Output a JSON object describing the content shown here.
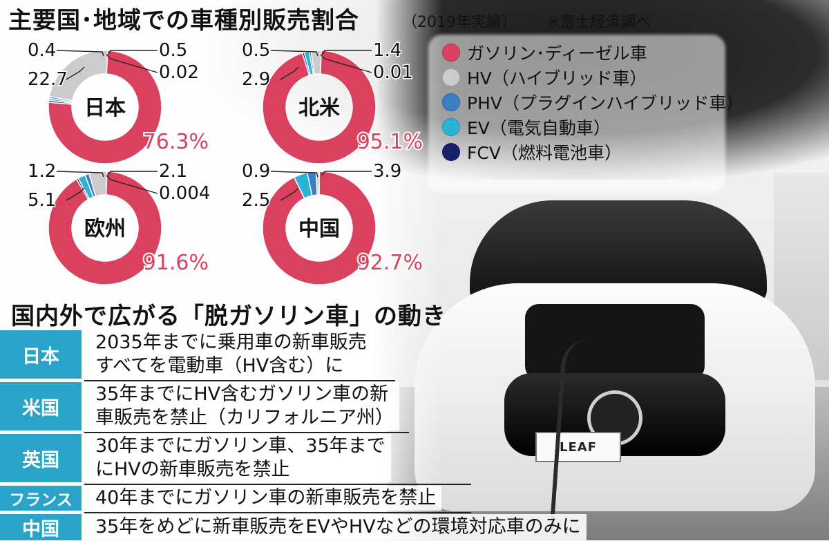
{
  "title": "主要国･地域での車種別販売割合",
  "subtitle": "（2019年実績）",
  "source_note": "※富士経済調べ",
  "colors": {
    "gasoline": "#d9415f",
    "hv": "#cccccc",
    "phv": "#3b7ec6",
    "ev": "#2ab3d6",
    "fcv": "#1a1f6a",
    "accent": "#2aa3c8"
  },
  "legend": [
    {
      "label": "ガソリン･ディーゼル車",
      "color_key": "gasoline"
    },
    {
      "label": "HV（ハイブリッド車）",
      "color_key": "hv"
    },
    {
      "label": "PHV（プラグインハイブリッド車）",
      "color_key": "phv"
    },
    {
      "label": "EV（電気自動車）",
      "color_key": "ev"
    },
    {
      "label": "FCV（燃料電池車）",
      "color_key": "fcv"
    }
  ],
  "chart_data": [
    {
      "type": "pie",
      "region": "日本",
      "categories": [
        "ガソリン･ディーゼル車",
        "HV",
        "PHV",
        "EV",
        "FCV"
      ],
      "values": [
        76.3,
        22.7,
        0.5,
        0.4,
        0.02
      ],
      "main_label": "76.3%",
      "labels": {
        "hv": "22.7",
        "phv": "0.5",
        "ev": "0.4",
        "fcv": "0.02"
      }
    },
    {
      "type": "pie",
      "region": "北米",
      "categories": [
        "ガソリン･ディーゼル車",
        "HV",
        "PHV",
        "EV",
        "FCV"
      ],
      "values": [
        95.1,
        2.9,
        0.5,
        1.4,
        0.01
      ],
      "main_label": "95.1%",
      "labels": {
        "hv": "2.9",
        "phv": "0.5",
        "ev": "1.4",
        "fcv": "0.01"
      }
    },
    {
      "type": "pie",
      "region": "欧州",
      "categories": [
        "ガソリン･ディーゼル車",
        "HV",
        "PHV",
        "EV",
        "FCV"
      ],
      "values": [
        91.6,
        5.1,
        1.2,
        2.1,
        0.004
      ],
      "main_label": "91.6%",
      "labels": {
        "hv": "5.1",
        "phv": "1.2",
        "ev": "2.1",
        "fcv": "0.004"
      }
    },
    {
      "type": "pie",
      "region": "中国",
      "categories": [
        "ガソリン･ディーゼル車",
        "HV",
        "PHV",
        "EV",
        "FCV"
      ],
      "values": [
        92.7,
        0.9,
        2.5,
        3.9,
        0
      ],
      "main_label": "92.7%",
      "labels": {
        "hv": "0.9",
        "phv": "2.5",
        "ev": "3.9"
      }
    }
  ],
  "section_title": "国内外で広がる「脱ガソリン車」の動き",
  "policies": [
    {
      "country": "日本",
      "lines": [
        "2035年までに乗用車の新車販売",
        "すべてを電動車（HV含む）に"
      ]
    },
    {
      "country": "米国",
      "lines": [
        "35年までにHV含むガソリン車の新",
        "車販売を禁止（カリフォルニア州）"
      ]
    },
    {
      "country": "英国",
      "lines": [
        "30年までにガソリン車、35年まで",
        "にHVの新車販売を禁止"
      ]
    },
    {
      "country": "フランス",
      "lines": [
        "40年までにガソリン車の新車販売を禁止"
      ]
    },
    {
      "country": "中国",
      "lines": [
        "35年をめどに新車販売をEVやHVなどの環境対応車のみに"
      ]
    }
  ],
  "photo": {
    "plate_text": "LEAF"
  }
}
